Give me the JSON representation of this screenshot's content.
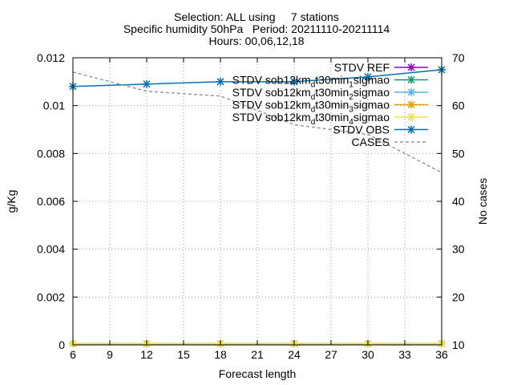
{
  "chart_data": {
    "type": "line",
    "title_lines": [
      "Selection: ALL using     7 stations",
      "Specific humidity 50hPa   Period: 20211110-20211114",
      "Hours: 00,06,12,18"
    ],
    "xlabel": "Forecast length",
    "ylabel": "g/Kg",
    "y2label": "No cases",
    "x": [
      6,
      12,
      18,
      24,
      30,
      36
    ],
    "xlim": [
      6,
      36
    ],
    "xticks": [
      "6",
      "9",
      "12",
      "15",
      "18",
      "21",
      "24",
      "27",
      "30",
      "33",
      "36"
    ],
    "ylim": [
      0,
      0.012
    ],
    "yticks": [
      "0",
      "0.002",
      "0.004",
      "0.006",
      "0.008",
      "0.01",
      "0.012"
    ],
    "y2lim": [
      10,
      70
    ],
    "y2ticks": [
      "10",
      "20",
      "30",
      "40",
      "50",
      "60",
      "70"
    ],
    "grid": true,
    "legend_position": "top-right",
    "series": [
      {
        "name": "STDV REF",
        "name_parts": [
          {
            "t": "STDV REF"
          }
        ],
        "color": "#9400d3",
        "marker": "x",
        "axis": "y1",
        "values": [
          5e-05,
          5e-05,
          5e-05,
          5e-05,
          5e-05,
          5e-05
        ]
      },
      {
        "name": "STDV sob12km_dt30min_1sigmao",
        "name_parts": [
          {
            "t": "STDV sob12km"
          },
          {
            "t": "d",
            "sub": true
          },
          {
            "t": "t30min"
          },
          {
            "t": "1",
            "sub": true
          },
          {
            "t": "sigmao"
          }
        ],
        "color": "#009e73",
        "marker": "x",
        "axis": "y1",
        "values": [
          5e-05,
          5e-05,
          5e-05,
          5e-05,
          5e-05,
          5e-05
        ]
      },
      {
        "name": "STDV sob12km_dt30min_2sigmao",
        "name_parts": [
          {
            "t": "STDV sob12km"
          },
          {
            "t": "d",
            "sub": true
          },
          {
            "t": "t30min"
          },
          {
            "t": "2",
            "sub": true
          },
          {
            "t": "sigmao"
          }
        ],
        "color": "#56b4e9",
        "marker": "x",
        "axis": "y1",
        "values": [
          5e-05,
          5e-05,
          5e-05,
          5e-05,
          5e-05,
          5e-05
        ]
      },
      {
        "name": "STDV sob12km_dt30min_3sigmao",
        "name_parts": [
          {
            "t": "STDV sob12km"
          },
          {
            "t": "d",
            "sub": true
          },
          {
            "t": "t30min"
          },
          {
            "t": "3",
            "sub": true
          },
          {
            "t": "sigmao"
          }
        ],
        "color": "#e69f00",
        "marker": "x",
        "axis": "y1",
        "values": [
          5e-05,
          5e-05,
          5e-05,
          5e-05,
          5e-05,
          5e-05
        ]
      },
      {
        "name": "STDV sob12km_dt30min_4sigmao",
        "name_parts": [
          {
            "t": "STDV sob12km"
          },
          {
            "t": "d",
            "sub": true
          },
          {
            "t": "t30min"
          },
          {
            "t": "4",
            "sub": true
          },
          {
            "t": "sigmao"
          }
        ],
        "color": "#f0e442",
        "marker": "x",
        "axis": "y1",
        "values": [
          5e-05,
          5e-05,
          5e-05,
          5e-05,
          5e-05,
          5e-05
        ]
      },
      {
        "name": "STDV OBS",
        "name_parts": [
          {
            "t": "STDV OBS"
          }
        ],
        "color": "#0072b2",
        "marker": "x",
        "axis": "y1",
        "values": [
          0.0108,
          0.0109,
          0.011,
          0.011,
          0.0112,
          0.0115
        ]
      },
      {
        "name": "CASES",
        "name_parts": [
          {
            "t": "CASES"
          }
        ],
        "color": "#999999",
        "marker": "none",
        "dashed": true,
        "axis": "y2",
        "values": [
          67,
          63,
          62,
          56,
          54,
          46
        ]
      }
    ]
  }
}
